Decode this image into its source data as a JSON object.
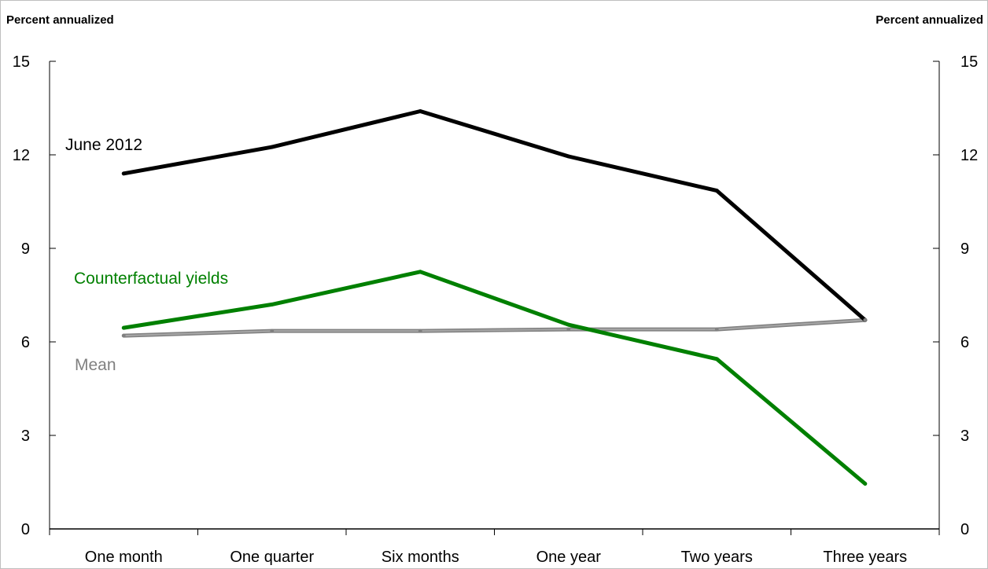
{
  "chart_data": {
    "type": "line",
    "categories": [
      "One month",
      "One quarter",
      "Six months",
      "One year",
      "Two years",
      "Three years"
    ],
    "left_axis_title": "Percent annualized",
    "right_axis_title": "Percent annualized",
    "ylim": [
      0,
      15
    ],
    "yticks": [
      0,
      3,
      6,
      9,
      12,
      15
    ],
    "grid": false,
    "series": [
      {
        "name": "June 2012",
        "color": "#000000",
        "values": [
          11.4,
          12.25,
          13.4,
          11.95,
          10.85,
          6.7
        ]
      },
      {
        "name": "Counterfactual yields",
        "color": "#008000",
        "values": [
          6.45,
          7.2,
          8.25,
          6.55,
          5.45,
          1.45
        ]
      },
      {
        "name": "Mean",
        "color": "#808080",
        "values": [
          6.2,
          6.35,
          6.35,
          6.4,
          6.4,
          6.7
        ]
      }
    ]
  }
}
